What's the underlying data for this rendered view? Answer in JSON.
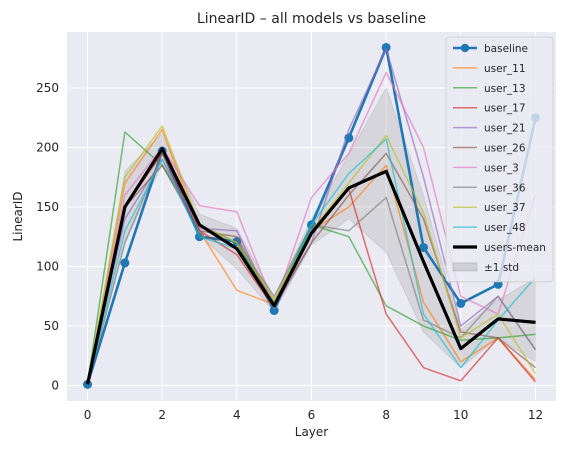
{
  "chart_data": {
    "type": "line",
    "title": "LinearID – all models vs baseline",
    "xlabel": "Layer",
    "ylabel": "LinearID",
    "xlim": [
      -0.55,
      12.55
    ],
    "ylim": [
      -13,
      297
    ],
    "xticks": [
      0,
      2,
      4,
      6,
      8,
      10,
      12
    ],
    "yticks": [
      0,
      50,
      100,
      150,
      200,
      250
    ],
    "grid": true,
    "legend_position": "top-right",
    "x": [
      0,
      1,
      2,
      3,
      4,
      5,
      6,
      7,
      8,
      9,
      10,
      11,
      12
    ],
    "baseline": {
      "name": "baseline",
      "color": "#1f77b4",
      "values": [
        1,
        103,
        197,
        125,
        121,
        63,
        135,
        208,
        284,
        116,
        69,
        85,
        225
      ]
    },
    "series": [
      {
        "name": "user_11",
        "color": "#ff7f0e",
        "values": [
          1,
          170,
          215,
          130,
          80,
          68,
          130,
          150,
          185,
          70,
          20,
          40,
          5
        ]
      },
      {
        "name": "user_13",
        "color": "#2ca02c",
        "values": [
          1,
          213,
          185,
          135,
          120,
          70,
          135,
          125,
          67,
          50,
          38,
          40,
          43
        ]
      },
      {
        "name": "user_17",
        "color": "#d62728",
        "values": [
          1,
          150,
          195,
          130,
          110,
          65,
          130,
          165,
          60,
          15,
          4,
          40,
          3
        ]
      },
      {
        "name": "user_21",
        "color": "#9467bd",
        "values": [
          1,
          140,
          190,
          132,
          130,
          65,
          120,
          215,
          283,
          175,
          50,
          75,
          30
        ]
      },
      {
        "name": "user_26",
        "color": "#8c564b",
        "values": [
          1,
          150,
          185,
          130,
          125,
          67,
          120,
          160,
          195,
          140,
          45,
          40,
          15
        ]
      },
      {
        "name": "user_3",
        "color": "#e377c2",
        "values": [
          1,
          160,
          200,
          151,
          146,
          67,
          158,
          195,
          263,
          200,
          75,
          60,
          160
        ]
      },
      {
        "name": "user_36",
        "color": "#7f7f7f",
        "values": [
          1,
          120,
          195,
          135,
          120,
          75,
          135,
          130,
          158,
          55,
          40,
          75,
          30
        ]
      },
      {
        "name": "user_37",
        "color": "#bcbd22",
        "values": [
          1,
          175,
          218,
          135,
          120,
          72,
          130,
          170,
          210,
          145,
          40,
          60,
          10
        ]
      },
      {
        "name": "user_48",
        "color": "#17becf",
        "values": [
          1,
          130,
          190,
          125,
          115,
          65,
          135,
          178,
          207,
          60,
          15,
          55,
          91
        ]
      }
    ],
    "users_mean": {
      "name": "users-mean",
      "color": "#000000",
      "values": [
        1,
        150,
        199,
        135,
        115,
        67,
        128,
        166,
        180,
        104,
        31,
        56,
        53
      ]
    },
    "band": {
      "name": "±1 std",
      "color": "#808080",
      "lower": [
        1,
        120,
        186,
        126,
        98,
        62,
        118,
        140,
        112,
        45,
        15,
        40,
        20
      ],
      "upper": [
        1,
        180,
        212,
        144,
        132,
        74,
        140,
        194,
        250,
        160,
        47,
        72,
        90
      ]
    }
  }
}
